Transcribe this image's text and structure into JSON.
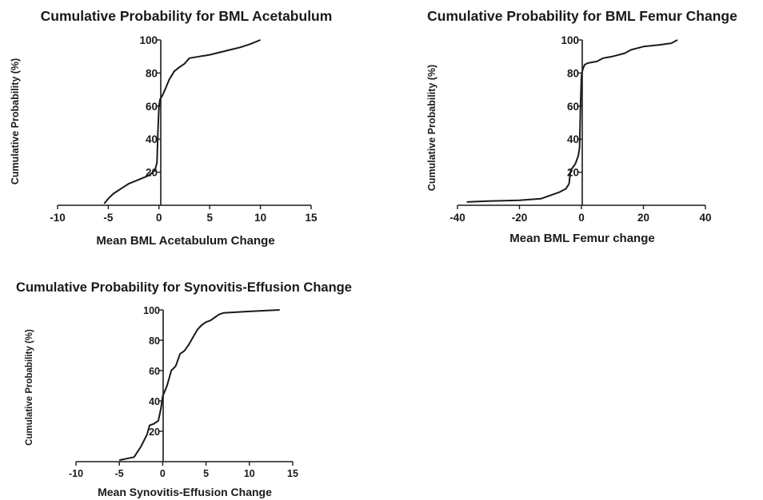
{
  "chart_data": [
    {
      "id": "acetabulum",
      "type": "line",
      "title": "Cumulative Probability for BML Acetabulum",
      "xlabel": "Mean BML Acetabulum Change",
      "ylabel": "Cumulative Probability (%)",
      "xlim": [
        -10,
        15
      ],
      "ylim": [
        0,
        100
      ],
      "xticks": [
        -10,
        -5,
        0,
        5,
        10,
        15
      ],
      "xtick_labels": [
        "-10",
        "-5",
        "0",
        "5",
        "10",
        "15"
      ],
      "yticks": [
        20,
        40,
        60,
        80,
        100
      ],
      "ytick_labels": [
        "20",
        "40",
        "60",
        "80",
        "100"
      ],
      "grid": false,
      "series": [
        {
          "x": [
            -5.4,
            -5,
            -4.5,
            -4,
            -3.5,
            -3,
            -2,
            -1,
            -0.4,
            -0.2,
            -0.1,
            0,
            0.1,
            0.3,
            0.6,
            1,
            1.5,
            2,
            2.5,
            3,
            4,
            5,
            6,
            7,
            8,
            9,
            10
          ],
          "y": [
            1,
            4,
            7,
            9,
            11,
            13,
            15.5,
            18,
            21,
            26,
            45,
            60,
            64,
            66,
            70,
            76,
            81,
            83.5,
            85.5,
            89,
            90,
            91,
            92.5,
            94,
            95.5,
            97.5,
            100
          ]
        }
      ]
    },
    {
      "id": "femur",
      "type": "line",
      "title": "Cumulative Probability for BML Femur Change",
      "xlabel": "Mean BML Femur change",
      "ylabel": "Cumulative Probability (%)",
      "xlim": [
        -40,
        40
      ],
      "ylim": [
        0,
        100
      ],
      "xticks": [
        -40,
        -20,
        0,
        20,
        40
      ],
      "xtick_labels": [
        "-40",
        "-20",
        "0",
        "20",
        "40"
      ],
      "yticks": [
        20,
        40,
        60,
        80,
        100
      ],
      "ytick_labels": [
        "20",
        "40",
        "60",
        "80",
        "100"
      ],
      "grid": false,
      "series": [
        {
          "x": [
            -37,
            -30,
            -20,
            -13,
            -10,
            -7,
            -5,
            -4,
            -3.5,
            -2,
            -1,
            -0.6,
            -0.3,
            0,
            0.4,
            1,
            2,
            5,
            7,
            10,
            14,
            16,
            20,
            25,
            29,
            31
          ],
          "y": [
            2,
            2.5,
            3,
            4,
            6,
            8,
            10,
            13,
            21,
            25,
            30,
            35,
            60,
            78,
            82,
            85,
            86,
            87,
            89,
            90,
            92,
            94,
            96,
            97,
            98,
            100
          ]
        }
      ]
    },
    {
      "id": "synovitis",
      "type": "line",
      "title": "Cumulative Probability for Synovitis-Effusion  Change",
      "xlabel": "Mean Synovitis-Effusion Change",
      "ylabel": "Cumulative Probability (%)",
      "xlim": [
        -10,
        15
      ],
      "ylim": [
        0,
        100
      ],
      "xticks": [
        -10,
        -5,
        0,
        5,
        10,
        15
      ],
      "xtick_labels": [
        "-10",
        "-5",
        "0",
        "5",
        "10",
        "15"
      ],
      "yticks": [
        20,
        40,
        60,
        80,
        100
      ],
      "ytick_labels": [
        "20",
        "40",
        "60",
        "80",
        "100"
      ],
      "grid": false,
      "series": [
        {
          "x": [
            -5,
            -3.3,
            -2.5,
            -1.8,
            -1.5,
            -1,
            -0.5,
            -0.2,
            0,
            0.5,
            1,
            1.5,
            2,
            2.5,
            3,
            3.5,
            4,
            4.5,
            5,
            5.5,
            6,
            6.5,
            7,
            10,
            13.5
          ],
          "y": [
            1,
            3,
            10,
            18,
            24,
            25,
            27,
            35,
            43,
            50,
            60,
            63,
            71,
            73,
            77,
            82,
            87,
            90,
            92,
            93,
            95,
            97,
            98,
            99,
            100
          ]
        }
      ]
    }
  ]
}
